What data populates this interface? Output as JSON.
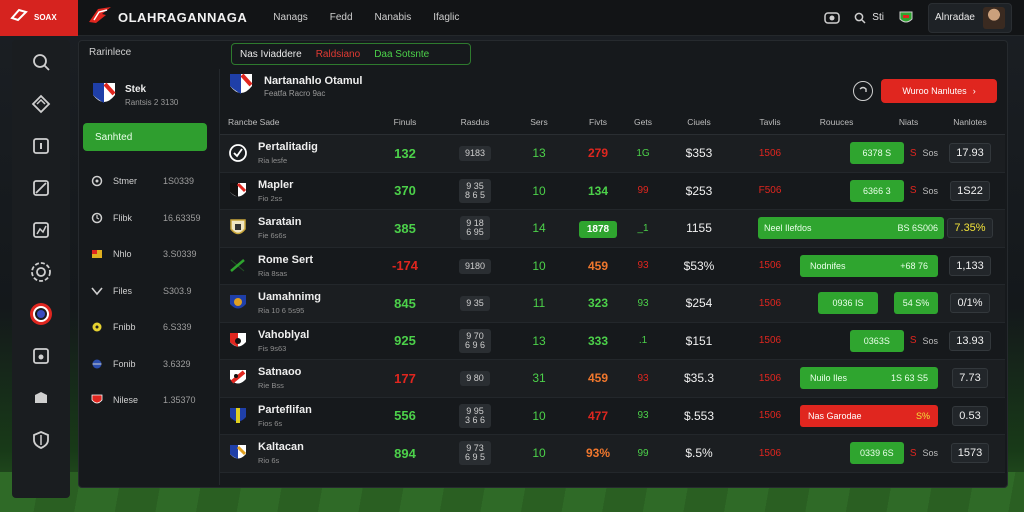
{
  "colors": {
    "accent_red": "#d6231f",
    "accent_green": "#2fa52f",
    "bg": "#16191c"
  },
  "topbar": {
    "brand_word": "SOAX",
    "app_title": "OLAHRAGANNAGA",
    "nav": [
      "Nanags",
      "Fedd",
      "Nanabis",
      "Ifaglic"
    ],
    "right_label": "Sti",
    "user_name": "Alnradae"
  },
  "sidebar": {
    "icons": [
      "search-icon",
      "diamond-icon",
      "info-icon",
      "flag-icon",
      "chart-icon",
      "target-icon",
      "lifebuoy-icon",
      "cup-icon",
      "box-icon",
      "shield-icon"
    ]
  },
  "panel": {
    "breadcrumb": "Rarinlece",
    "tabs": [
      "Nas Iviaddere",
      "Raldsiano",
      "Daa Sotsnte"
    ]
  },
  "left": {
    "team_name": "Stek",
    "team_sub": "Rantsis 2 3130",
    "green_button": "Sanhted",
    "filters": [
      {
        "icon": "settings",
        "label": "Stmer",
        "value": "1S0339"
      },
      {
        "icon": "clock",
        "label": "Flibk",
        "value": "16.63359"
      },
      {
        "icon": "flag",
        "label": "Nhlo",
        "value": "3.S0339"
      },
      {
        "icon": "chevron",
        "label": "Files",
        "value": "S303.9"
      },
      {
        "icon": "dot",
        "label": "Fnibb",
        "value": "6.S339"
      },
      {
        "icon": "globe",
        "label": "Fonib",
        "value": "3.6329"
      },
      {
        "icon": "shield",
        "label": "Nilese",
        "value": "1.35370"
      }
    ]
  },
  "main": {
    "header_name": "Nartanahlo Otamul",
    "header_sub": "Featfa Racro 9ac",
    "red_button": "Wuroo Nanlutes",
    "columns": [
      "Rancbe Sade",
      "Finuls",
      "Rasdus",
      "Sers",
      "Fivts",
      "Gets",
      "Ciuels",
      "Tavlis",
      "Rouuces",
      "Niats",
      "Nanlotes"
    ],
    "rows": [
      {
        "name": "Pertalitadig",
        "sub": "Ria lesfe",
        "score": "132",
        "sc": "green",
        "pill": "9183",
        "sets": "13",
        "pts": "279",
        "pc": "red",
        "g": "1G",
        "gc": "green",
        "money": "$353",
        "pct": "1506",
        "bar": {
          "kind": "small",
          "text": "6378 S"
        },
        "x": "S",
        "xl": "Sos",
        "val": "17.93",
        "vc": "white"
      },
      {
        "name": "Mapler",
        "sub": "Fio 2ss",
        "score": "370",
        "sc": "green",
        "pill": "9 35\n8 6 5",
        "sets": "10",
        "pts": "134",
        "pc": "green",
        "g": "99",
        "gc": "red",
        "money": "$253",
        "pct": "F506",
        "bar": {
          "kind": "small",
          "text": "6366 3"
        },
        "x": "S",
        "xl": "Sos",
        "val": "1S22",
        "vc": "white"
      },
      {
        "name": "Saratain",
        "sub": "Fie 6s6s",
        "score": "385",
        "sc": "green",
        "pill": "9 18\n6 95",
        "sets": "14",
        "pts": "1878",
        "pc": "greenbox",
        "g": "_1",
        "gc": "green",
        "money": "1155",
        "pct": "",
        "bar": {
          "kind": "wide",
          "text": "Neel Ilefdos",
          "right": "BS 6S006"
        },
        "x": "",
        "xl": "",
        "val": "7.35%",
        "vc": "yellow"
      },
      {
        "name": "Rome Sert",
        "sub": "Ria 8sas",
        "score": "-174",
        "sc": "red",
        "pill": "9180",
        "sets": "10",
        "pts": "459",
        "pc": "orange",
        "g": "93",
        "gc": "red",
        "money": "$53%",
        "pct": "1506",
        "bar": {
          "kind": "wide2",
          "text": "Nodnifes",
          "right": "+68 76"
        },
        "x": "",
        "xl": "",
        "val": "1,133",
        "vc": "white"
      },
      {
        "name": "Uamahnimg",
        "sub": "Ria 10 6 5s95",
        "score": "845",
        "sc": "green",
        "pill": "9 35",
        "sets": "11",
        "pts": "323",
        "pc": "green",
        "g": "93",
        "gc": "green",
        "money": "$254",
        "pct": "1506",
        "bar": {
          "kind": "small2",
          "text": "0936 IS",
          "right": "54 S%"
        },
        "x": "",
        "xl": "",
        "val": "0/1%",
        "vc": "white"
      },
      {
        "name": "Vahoblyal",
        "sub": "Fis 9s63",
        "score": "925",
        "sc": "green",
        "pill": "9 70\n6 9 6",
        "sets": "13",
        "pts": "333",
        "pc": "green",
        "g": ".1",
        "gc": "green",
        "money": "$151",
        "pct": "1506",
        "bar": {
          "kind": "small",
          "text": "0363S"
        },
        "x": "S",
        "xl": "Sos",
        "val": "13.93",
        "vc": "white"
      },
      {
        "name": "Satnaoo",
        "sub": "Rie Bss",
        "score": "177",
        "sc": "red",
        "pill": "9 80",
        "sets": "31",
        "pts": "459",
        "pc": "orange",
        "g": "93",
        "gc": "red",
        "money": "$35.3",
        "pct": "1506",
        "bar": {
          "kind": "wide3",
          "text": "Nuilo Iles",
          "right": "1S 63 S5"
        },
        "x": "",
        "xl": "",
        "val": "7.73",
        "vc": "white"
      },
      {
        "name": "Parteflifan",
        "sub": "Fios 6s",
        "score": "556",
        "sc": "green",
        "pill": "9 95\n3 6 6",
        "sets": "10",
        "pts": "477",
        "pc": "red",
        "g": "93",
        "gc": "green",
        "money": "$.553",
        "pct": "1506",
        "bar": {
          "kind": "red",
          "text": "Nas Garodae",
          "right": "S%"
        },
        "x": "",
        "xl": "",
        "val": "0.53",
        "vc": "white"
      },
      {
        "name": "Kaltacan",
        "sub": "Rio 6s",
        "score": "894",
        "sc": "green",
        "pill": "9 73\n6 9 5",
        "sets": "10",
        "pts": "93%",
        "pc": "orange",
        "g": "99",
        "gc": "green",
        "money": "$.5%",
        "pct": "1506",
        "bar": {
          "kind": "small",
          "text": "0339 6S"
        },
        "x": "S",
        "xl": "Sos",
        "val": "1573",
        "vc": "white"
      }
    ]
  }
}
